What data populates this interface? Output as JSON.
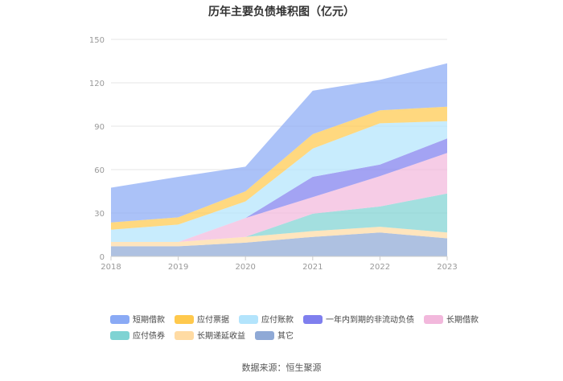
{
  "chart_data": {
    "type": "area",
    "stacked": true,
    "title": "历年主要负债堆积图（亿元）",
    "x": [
      "2018",
      "2019",
      "2020",
      "2021",
      "2022",
      "2023"
    ],
    "ylim": [
      0,
      150
    ],
    "yticks": [
      0,
      30,
      60,
      90,
      120,
      150
    ],
    "xlabel": "",
    "ylabel": "",
    "grid": true,
    "legend_position": "bottom",
    "series": [
      {
        "name": "其它",
        "color": "#8fa9d6",
        "values": [
          7,
          7,
          9.5,
          13.5,
          16.5,
          12.5
        ]
      },
      {
        "name": "长期递延收益",
        "color": "#ffdba3",
        "values": [
          3,
          3,
          4,
          4,
          4,
          4
        ]
      },
      {
        "name": "应付债券",
        "color": "#7fd3d3",
        "values": [
          0,
          0,
          0,
          12,
          14,
          27
        ]
      },
      {
        "name": "长期借款",
        "color": "#f2b8dc",
        "values": [
          0,
          0,
          13,
          11.5,
          21,
          28
        ]
      },
      {
        "name": "一年内到期的非流动负债",
        "color": "#7f7fee",
        "values": [
          0,
          0,
          0,
          14,
          8,
          10
        ]
      },
      {
        "name": "应付账款",
        "color": "#b3e4fc",
        "values": [
          8.5,
          12,
          11.5,
          19.5,
          28.5,
          12
        ]
      },
      {
        "name": "应付票据",
        "color": "#ffc94d",
        "values": [
          5,
          5,
          7,
          10,
          9,
          10
        ]
      },
      {
        "name": "短期借款",
        "color": "#8aaaf5",
        "values": [
          24,
          28,
          17,
          30,
          21,
          30
        ]
      }
    ],
    "legend_order": [
      "短期借款",
      "应付票据",
      "应付账款",
      "一年内到期的非流动负债",
      "长期借款",
      "应付债券",
      "长期递延收益",
      "其它"
    ],
    "source": "数据来源：恒生聚源"
  }
}
